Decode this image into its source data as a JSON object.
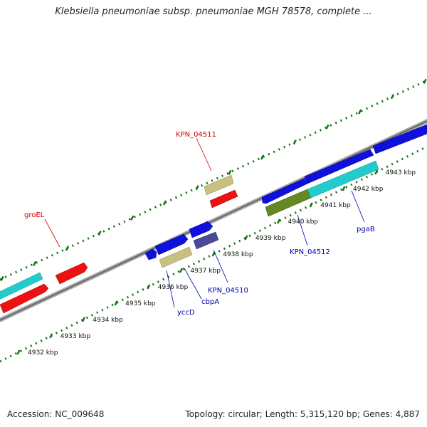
{
  "title": "Klebsiella pneumoniae subsp. pneumoniae MGH 78578, complete ...",
  "footer": {
    "accession": "Accession: NC_009648",
    "summary": "Topology: circular; Length: 5,315,120 bp; Genes: 4,887"
  },
  "scale": {
    "tick_labels": [
      "4932 kbp",
      "4933 kbp",
      "4934 kbp",
      "4935 kbp",
      "4936 kbp",
      "4937 kbp",
      "4938 kbp",
      "4939 kbp",
      "4940 kbp",
      "4941 kbp",
      "4942 kbp",
      "4943 kbp"
    ]
  },
  "gene_labels": [
    {
      "text": "groEL",
      "color": "#cc0000"
    },
    {
      "text": "KPN_04511",
      "color": "#cc0000"
    },
    {
      "text": "yccD",
      "color": "#0000aa"
    },
    {
      "text": "cbpA",
      "color": "#0000aa"
    },
    {
      "text": "KPN_04510",
      "color": "#0000aa"
    },
    {
      "text": "KPN_04512",
      "color": "#0000aa"
    },
    {
      "text": "pgaB",
      "color": "#0000aa"
    }
  ],
  "colors": {
    "forward_cds": "#ee1111",
    "reverse_cds": "#1010dd",
    "rrna_or_other": "#22cccc",
    "trna_or_misc": "#c8c080",
    "olive_feature": "#668822",
    "slate_feature": "#4a4a99",
    "backbone": "#888888",
    "tick_color": "#117711"
  }
}
